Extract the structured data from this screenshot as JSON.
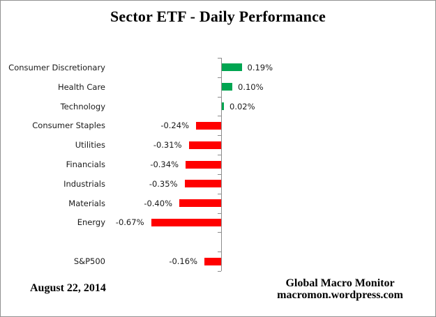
{
  "chart_data": {
    "type": "bar",
    "orientation": "horizontal",
    "title": "Sector ETF - Daily Performance",
    "categories": [
      "Consumer Discretionary",
      "Health Care",
      "Technology",
      "Consumer Staples",
      "Utilities",
      "Financials",
      "Industrials",
      "Materials",
      "Energy",
      "S&P500"
    ],
    "values": [
      0.19,
      0.1,
      0.02,
      -0.24,
      -0.31,
      -0.34,
      -0.35,
      -0.4,
      -0.67,
      -0.16
    ],
    "value_labels": [
      "0.19%",
      "0.10%",
      "0.02%",
      "-0.24%",
      "-0.31%",
      "-0.34%",
      "-0.35%",
      "-0.40%",
      "-0.67%",
      "-0.16%"
    ],
    "unit": "%",
    "positive_color": "#00A551",
    "negative_color": "#FF0000",
    "axis_color": "#8C8C8C",
    "layout_hints": {
      "value_axis_labels_visible": false,
      "gridlines": false,
      "legend": "none",
      "gap_before_last_category": true,
      "baseline_at_zero": true,
      "tick_marks": "outside-left"
    }
  },
  "footer": {
    "date": "August 22, 2014",
    "brand_line1": "Global Macro Monitor",
    "brand_line2": "macromon.wordpress.com"
  }
}
